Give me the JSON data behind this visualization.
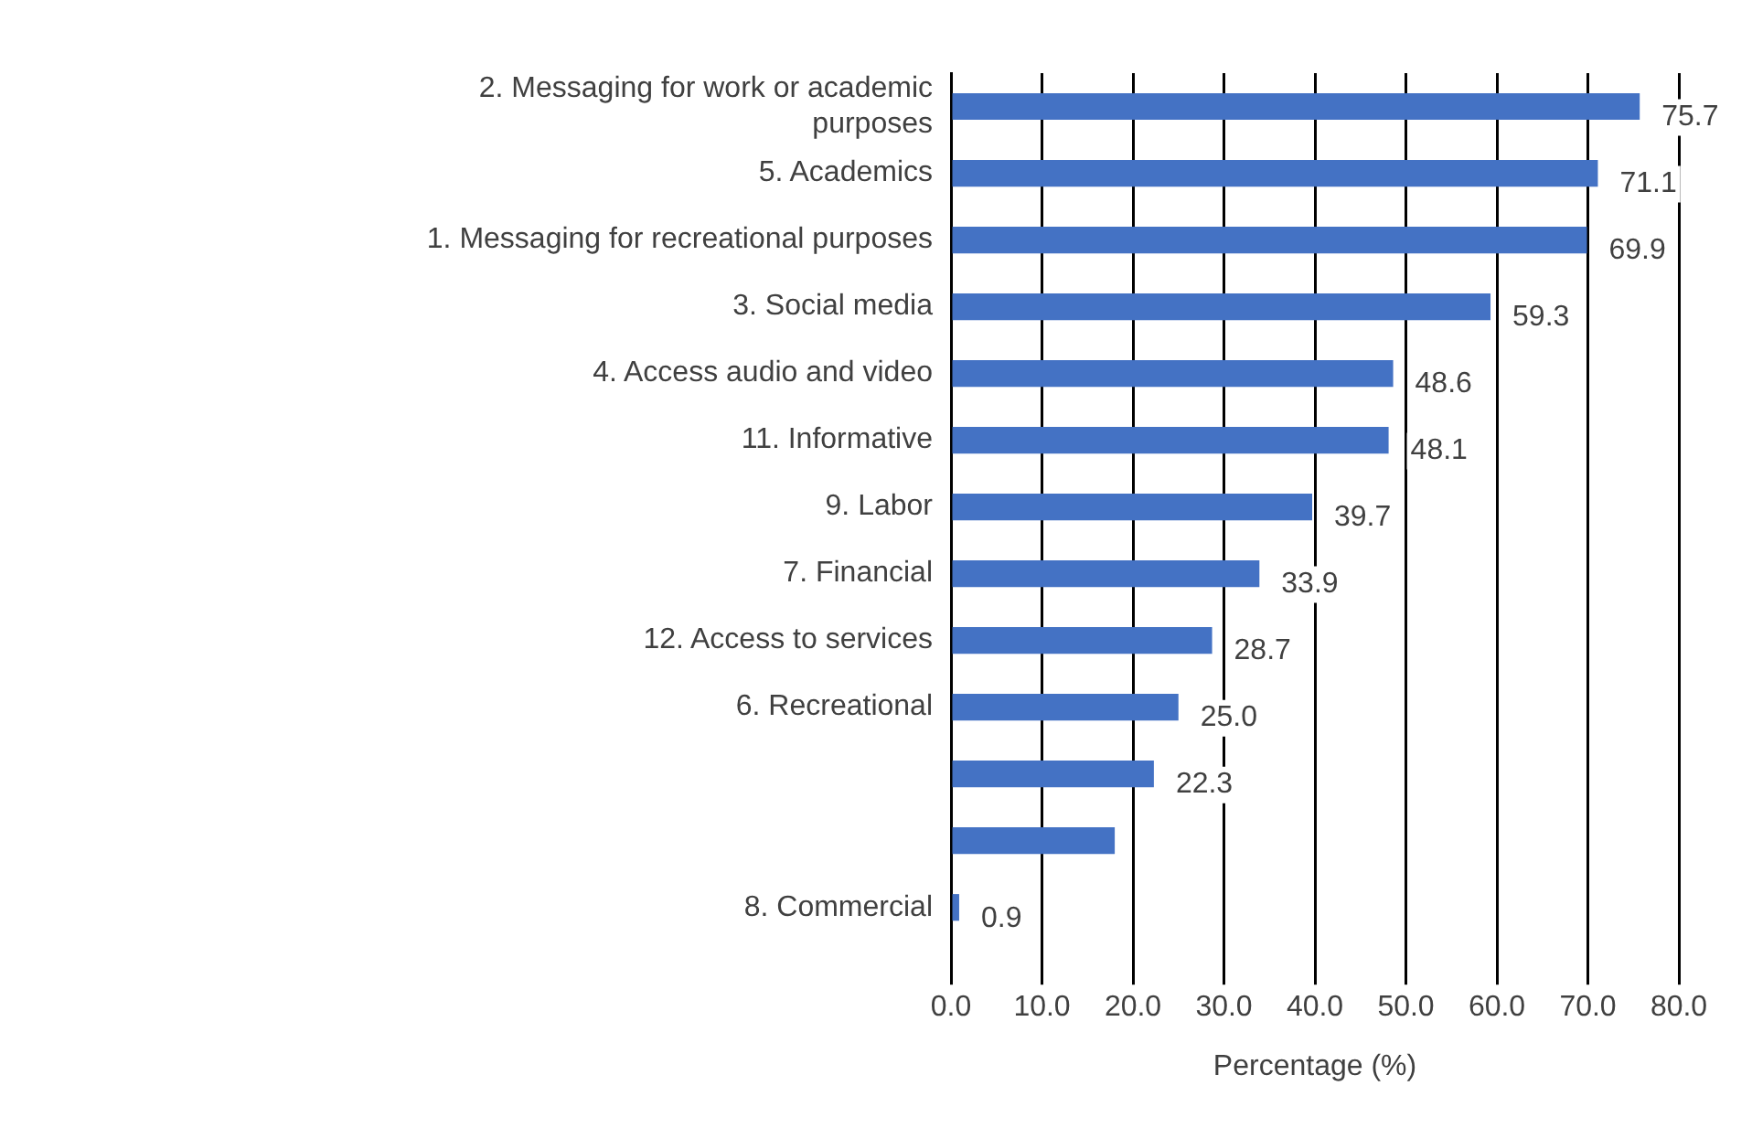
{
  "chart_data": {
    "type": "bar",
    "orientation": "horizontal",
    "xlabel": "Percentage (%)",
    "categories": [
      "2. Messaging for work or academic purposes",
      "5. Academics",
      "1. Messaging for recreational purposes",
      "3. Social media",
      "4. Access audio and video",
      "11. Informative",
      "9. Labor",
      "7. Financial",
      "12. Access to services",
      "6. Recreational",
      null,
      null,
      "8. Commercial"
    ],
    "values": [
      75.7,
      71.1,
      69.9,
      59.3,
      48.6,
      48.1,
      39.7,
      33.9,
      28.7,
      25.0,
      22.3,
      18,
      0.9
    ],
    "value_labels": [
      "75.7",
      "71.1",
      "69.9",
      "59.3",
      "48.6",
      "48.1",
      "39.7",
      "33.9",
      "28.7",
      "25.0",
      "22.3",
      null,
      "0.9"
    ],
    "color": "#4472c4",
    "xlim": [
      0,
      80
    ],
    "xticks": [
      {
        "value": 0,
        "label": "0.0"
      },
      {
        "value": 10,
        "label": "10.0"
      },
      {
        "value": 20,
        "label": "20.0"
      },
      {
        "value": 30,
        "label": "30.0"
      },
      {
        "value": 40,
        "label": "40.0"
      },
      {
        "value": 50,
        "label": "50.0"
      },
      {
        "value": 60,
        "label": "60.0"
      },
      {
        "value": 70,
        "label": "70.0"
      },
      {
        "value": 80,
        "label": "80.0"
      }
    ],
    "grid": "x"
  }
}
